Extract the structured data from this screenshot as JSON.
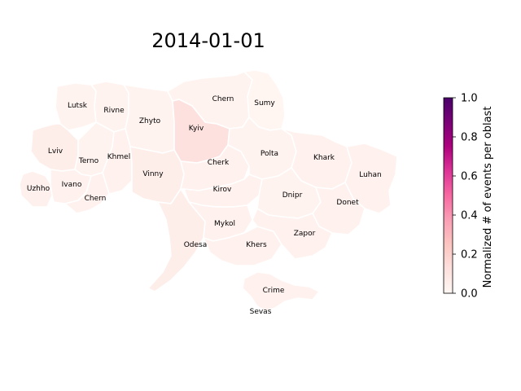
{
  "title": "2014-01-01",
  "colors": {
    "cmap_stops": [
      "#fff7f3",
      "#fde0dd",
      "#fcc5c0",
      "#fa9fb5",
      "#f768a1",
      "#dd3497",
      "#ae017e",
      "#7a0177",
      "#49006a"
    ]
  },
  "regions": [
    {
      "id": "lutsk",
      "label": "Lutsk",
      "value": 0.02
    },
    {
      "id": "rivne",
      "label": "Rivne",
      "value": 0.02
    },
    {
      "id": "zhyto",
      "label": "Zhyto",
      "value": 0.02
    },
    {
      "id": "chern_n",
      "label": "Chern",
      "value": 0.02
    },
    {
      "id": "sumy",
      "label": "Sumy",
      "value": 0.01
    },
    {
      "id": "kyiv",
      "label": "Kyiv",
      "value": 0.12
    },
    {
      "id": "lviv",
      "label": "Lviv",
      "value": 0.05
    },
    {
      "id": "terno",
      "label": "Terno",
      "value": 0.02
    },
    {
      "id": "khmel",
      "label": "Khmel",
      "value": 0.03
    },
    {
      "id": "vinny",
      "label": "Vinny",
      "value": 0.05
    },
    {
      "id": "cherk",
      "label": "Cherk",
      "value": 0.03
    },
    {
      "id": "polta",
      "label": "Polta",
      "value": 0.02
    },
    {
      "id": "khark",
      "label": "Khark",
      "value": 0.03
    },
    {
      "id": "luhan",
      "label": "Luhan",
      "value": 0.03
    },
    {
      "id": "uzhho",
      "label": "Uzhho",
      "value": 0.04
    },
    {
      "id": "ivano",
      "label": "Ivano",
      "value": 0.03
    },
    {
      "id": "chern_s",
      "label": "Chern",
      "value": 0.03
    },
    {
      "id": "kirov",
      "label": "Kirov",
      "value": 0.03
    },
    {
      "id": "dnipr",
      "label": "Dnipr",
      "value": 0.02
    },
    {
      "id": "donet",
      "label": "Donet",
      "value": 0.03
    },
    {
      "id": "odesa",
      "label": "Odesa",
      "value": 0.05
    },
    {
      "id": "mykol",
      "label": "Mykol",
      "value": 0.03
    },
    {
      "id": "khers",
      "label": "Khers",
      "value": 0.03
    },
    {
      "id": "zapor",
      "label": "Zapor",
      "value": 0.03
    },
    {
      "id": "crime",
      "label": "Crime",
      "value": 0.03
    },
    {
      "id": "sevas",
      "label": "Sevas",
      "value": 0.0
    }
  ],
  "colorbar": {
    "label": "Normalized # of events per oblast",
    "ticks": [
      "0.0",
      "0.2",
      "0.4",
      "0.6",
      "0.8",
      "1.0"
    ],
    "range": [
      0,
      1
    ]
  }
}
